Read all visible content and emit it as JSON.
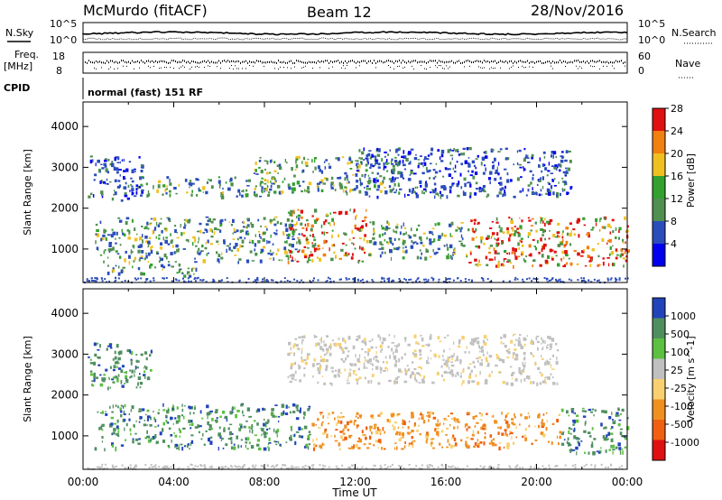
{
  "header": {
    "station": "McMurdo (fitACF)",
    "beam": "Beam 12",
    "date": "28/Nov/2016",
    "n_sky": "N.Sky",
    "n_search": "N.Search",
    "freq_line1": "Freq.",
    "freq_line2": "[MHz]",
    "nave": "Nave",
    "cpid": "CPID",
    "mode": "normal (fast) 151 RF",
    "sky_hi": "10^5",
    "sky_lo": "10^0",
    "search_hi": "10^5",
    "search_lo": "10^0",
    "freq_hi": "18",
    "freq_lo": "8",
    "nave_hi": "60",
    "nave_lo": "0"
  },
  "chart_data": [
    {
      "type": "heatmap",
      "title": "",
      "ylabel": "Slant Range [km]",
      "ylim": [
        180,
        4600
      ],
      "yticks": [
        "1000",
        "2000",
        "3000",
        "4000"
      ],
      "xlim": [
        "00:00",
        "24:00"
      ],
      "colorbar": {
        "label": "Power [dB]",
        "ticks": [
          "4",
          "8",
          "12",
          "16",
          "20",
          "24",
          "28"
        ],
        "colors": [
          "#0000ee",
          "#2a4dbb",
          "#4f8f4f",
          "#33a030",
          "#f0c020",
          "#f08010",
          "#e01010"
        ]
      },
      "echo_regions": [
        {
          "t0": 0.2,
          "t1": 2.6,
          "r0": 2200,
          "r1": 3300,
          "level": "low"
        },
        {
          "t0": 2.4,
          "t1": 8.5,
          "r0": 2300,
          "r1": 2800,
          "level": "mid"
        },
        {
          "t0": 7.5,
          "t1": 14.0,
          "r0": 2400,
          "r1": 3300,
          "level": "mid"
        },
        {
          "t0": 12.0,
          "t1": 21.5,
          "r0": 2300,
          "r1": 3500,
          "level": "low"
        },
        {
          "t0": 0.5,
          "t1": 9.5,
          "r0": 700,
          "r1": 1800,
          "level": "mid"
        },
        {
          "t0": 9.0,
          "t1": 12.5,
          "r0": 700,
          "r1": 2000,
          "level": "high"
        },
        {
          "t0": 12.5,
          "t1": 17.0,
          "r0": 800,
          "r1": 1700,
          "level": "mid"
        },
        {
          "t0": 17.0,
          "t1": 24.0,
          "r0": 600,
          "r1": 1800,
          "level": "high"
        },
        {
          "t0": 1.0,
          "t1": 5.0,
          "r0": 350,
          "r1": 650,
          "level": "mid"
        }
      ]
    },
    {
      "type": "heatmap",
      "title": "",
      "ylabel": "Slant Range [km]",
      "ylim": [
        180,
        4600
      ],
      "yticks": [
        "1000",
        "2000",
        "3000",
        "4000"
      ],
      "xlabel": "Time UT",
      "xticks": [
        "00:00",
        "04:00",
        "08:00",
        "12:00",
        "16:00",
        "20:00",
        "00:00"
      ],
      "colorbar": {
        "label": "Velocity [m s^-1]",
        "ticks": [
          "1000",
          "500",
          "100",
          "25",
          "-25",
          "-100",
          "-500",
          "-1000"
        ],
        "colors": [
          "#2244bb",
          "#4f8f5f",
          "#5cc040",
          "#c0c0c0",
          "#f8d070",
          "#f09020",
          "#f06010",
          "#e01010"
        ]
      },
      "echo_regions": [
        {
          "t0": 0.2,
          "t1": 3.0,
          "r0": 2200,
          "r1": 3300,
          "level": "toward"
        },
        {
          "t0": 9.0,
          "t1": 21.0,
          "r0": 2300,
          "r1": 3500,
          "level": "near-zero"
        },
        {
          "t0": 0.5,
          "t1": 10.0,
          "r0": 700,
          "r1": 1800,
          "level": "toward"
        },
        {
          "t0": 10.0,
          "t1": 21.0,
          "r0": 700,
          "r1": 1600,
          "level": "away"
        },
        {
          "t0": 21.0,
          "t1": 24.0,
          "r0": 600,
          "r1": 1700,
          "level": "toward"
        }
      ]
    }
  ]
}
